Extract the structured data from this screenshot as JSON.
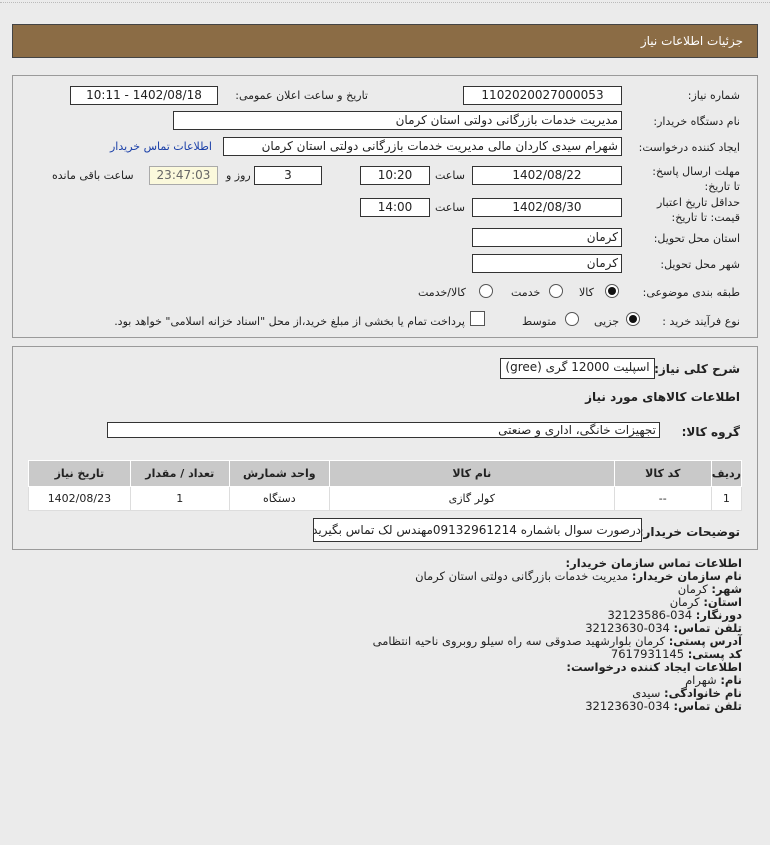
{
  "header": {
    "title": "جزئیات اطلاعات نیاز"
  },
  "form": {
    "need_number_label": "شماره نیاز:",
    "need_number": "1102020027000053",
    "announce_label": "تاریخ و ساعت اعلان عمومی:",
    "announce_value": "1402/08/18 - 10:11",
    "buyer_label": "نام دستگاه خریدار:",
    "buyer_value": "مدیریت خدمات بازرگانی دولتی استان کرمان",
    "creator_label": "ایجاد کننده درخواست:",
    "creator_value": "شهرام سیدی کاردان مالی مدیریت خدمات بازرگانی دولتی استان کرمان",
    "contact_link": "اطلاعات تماس خریدار",
    "deadline_label": "مهلت ارسال پاسخ: تا تاریخ:",
    "deadline_date": "1402/08/22",
    "time_label": "ساعت",
    "deadline_time": "10:20",
    "days": "3",
    "days_label": "روز و",
    "remaining": "23:47:03",
    "remaining_label": "ساعت باقی مانده",
    "validity_label": "حداقل تاریخ اعتبار قیمت: تا تاریخ:",
    "validity_date": "1402/08/30",
    "validity_time": "14:00",
    "province_label": "استان محل تحویل:",
    "province": "کرمان",
    "city_label": "شهر محل تحویل:",
    "city": "کرمان",
    "category_label": "طبقه بندی موضوعی:",
    "category_options": [
      "کالا",
      "خدمت",
      "کالا/خدمت"
    ],
    "category_selected": "کالا",
    "process_label": "نوع فرآیند خرید :",
    "process_options": [
      "جزیی",
      "متوسط"
    ],
    "process_selected": "جزیی",
    "treasury_text": "پرداخت تمام یا بخشی از مبلغ خرید،از محل \"اسناد خزانه اسلامی\" خواهد بود.",
    "treasury_checked": false
  },
  "details": {
    "desc_label": "شرح کلی نیاز:",
    "desc_value": "اسپلیت 12000 گری (gree)",
    "goods_heading": "اطلاعات کالاهای مورد نیاز",
    "group_label": "گروه کالا:",
    "group_value": "تجهیزات خانگی، اداری و صنعتی",
    "table": {
      "headers": [
        "ردیف",
        "کد کالا",
        "نام کالا",
        "واحد شمارش",
        "تعداد / مقدار",
        "تاریخ نیاز"
      ],
      "rows": [
        [
          "1",
          "--",
          "کولر گازی",
          "دستگاه",
          "1",
          "1402/08/23"
        ]
      ]
    },
    "notes_label": "توضیحات خریدار:",
    "notes_value": "درصورت سوال باشماره 09132961214مهندس لک تماس بگیرید"
  },
  "contact": {
    "heading": "اطلاعات تماس سازمان خریدار:",
    "org_label": "نام سازمان خریدار:",
    "org": "مدیریت خدمات بازرگانی دولتی استان کرمان",
    "city_label": "شهر:",
    "city": "کرمان",
    "province_label": "استان:",
    "province": "کرمان",
    "fax_label": "دورنگار:",
    "fax": "034-32123586",
    "phone_label": "تلفن تماس:",
    "phone": "034-32123630",
    "address_label": "آدرس پستی:",
    "address": "کرمان بلوارشهید صدوقی سه راه سیلو روبروی ناحیه انتظامی",
    "postal_label": "کد پستی:",
    "postal": "7617931145",
    "creator_heading": "اطلاعات ایجاد کننده درخواست:",
    "name_label": "نام:",
    "name": "شهرام",
    "family_label": "نام خانوادگی:",
    "family": "سیدی",
    "cphone_label": "تلفن تماس:",
    "cphone": "034-32123630"
  }
}
